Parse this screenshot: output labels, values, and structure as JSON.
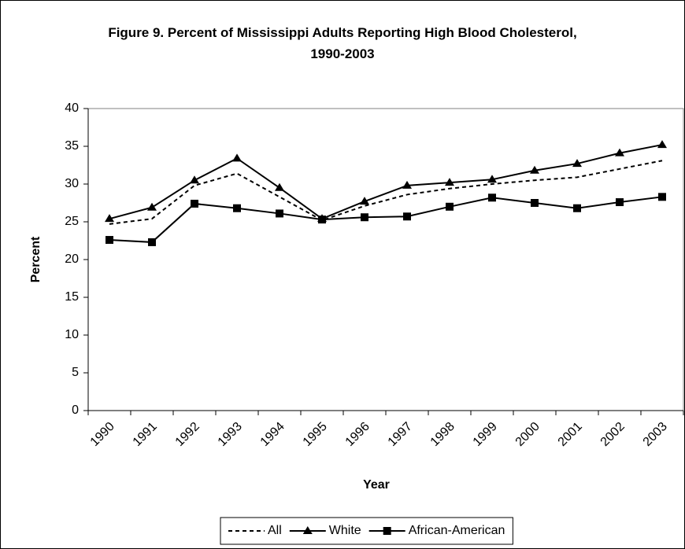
{
  "chart_data": {
    "type": "line",
    "title": "Figure 9. Percent of Mississippi Adults Reporting High Blood Cholesterol, 1990-2003",
    "xlabel": "Year",
    "ylabel": "Percent",
    "categories": [
      "1990",
      "1991",
      "1992",
      "1993",
      "1994",
      "1995",
      "1996",
      "1997",
      "1998",
      "1999",
      "2000",
      "2001",
      "2002",
      "2003"
    ],
    "series": [
      {
        "name": "All",
        "color": "#000000",
        "dash": true,
        "marker": "none",
        "values": [
          24.7,
          25.4,
          29.8,
          31.4,
          28.3,
          25.2,
          27.1,
          28.6,
          29.4,
          30.0,
          30.5,
          30.9,
          32.0,
          33.1
        ]
      },
      {
        "name": "White",
        "color": "#000000",
        "dash": false,
        "marker": "triangle",
        "values": [
          25.4,
          26.9,
          30.5,
          33.4,
          29.5,
          25.4,
          27.7,
          29.8,
          30.2,
          30.6,
          31.8,
          32.7,
          34.1,
          35.2
        ]
      },
      {
        "name": "African-American",
        "color": "#000000",
        "dash": false,
        "marker": "square",
        "values": [
          22.6,
          22.3,
          27.4,
          26.8,
          26.1,
          25.3,
          25.6,
          25.7,
          27.0,
          28.2,
          27.5,
          26.8,
          27.6,
          28.3
        ]
      }
    ],
    "ylim": [
      0,
      40
    ],
    "yticks": [
      0,
      5,
      10,
      15,
      20,
      25,
      30,
      35,
      40
    ],
    "grid": false,
    "legend": "bottom"
  }
}
